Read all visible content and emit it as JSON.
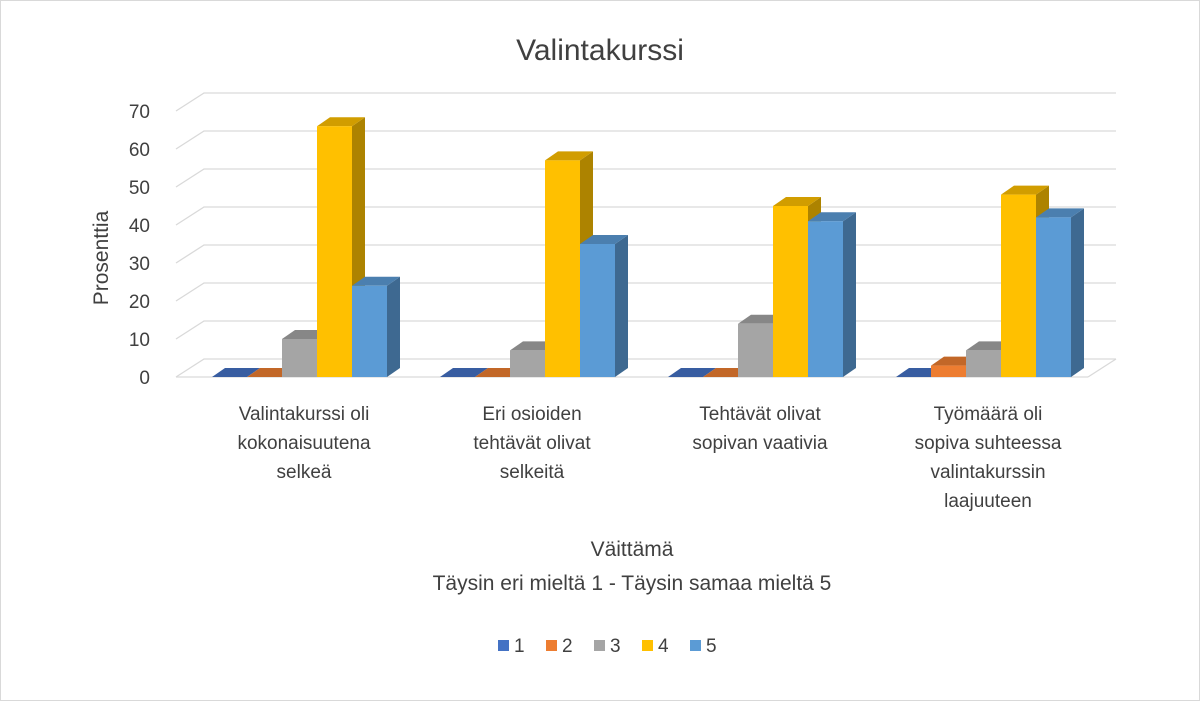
{
  "chart_data": {
    "type": "bar",
    "title": "Valintakurssi",
    "ylabel": "Prosenttia",
    "xlabel": [
      "Väittämä",
      "Täysin eri mieltä 1 - Täysin samaa mieltä 5"
    ],
    "ylim": [
      0,
      70
    ],
    "yticks": [
      "0",
      "10",
      "20",
      "30",
      "40",
      "50",
      "60",
      "70"
    ],
    "grid": true,
    "legend_position": "bottom",
    "categories": [
      [
        "Valintakurssi oli",
        "kokonaisuutena",
        "selkeä"
      ],
      [
        "Eri osioiden",
        "tehtävät olivat",
        "selkeitä"
      ],
      [
        "Tehtävät olivat",
        "sopivan vaativia"
      ],
      [
        "Työmäärä oli",
        "sopiva suhteessa",
        "valintakurssin",
        "laajuuteen"
      ]
    ],
    "series": [
      {
        "name": "1",
        "color": "#4472C4",
        "values": [
          0,
          0,
          0,
          0
        ]
      },
      {
        "name": "2",
        "color": "#ED7D31",
        "values": [
          0,
          0,
          0,
          3
        ]
      },
      {
        "name": "3",
        "color": "#A5A5A5",
        "values": [
          10,
          7,
          14,
          7
        ]
      },
      {
        "name": "4",
        "color": "#FFC000",
        "values": [
          66,
          57,
          45,
          48
        ]
      },
      {
        "name": "5",
        "color": "#5B9BD5",
        "values": [
          24,
          35,
          41,
          42
        ]
      }
    ]
  }
}
